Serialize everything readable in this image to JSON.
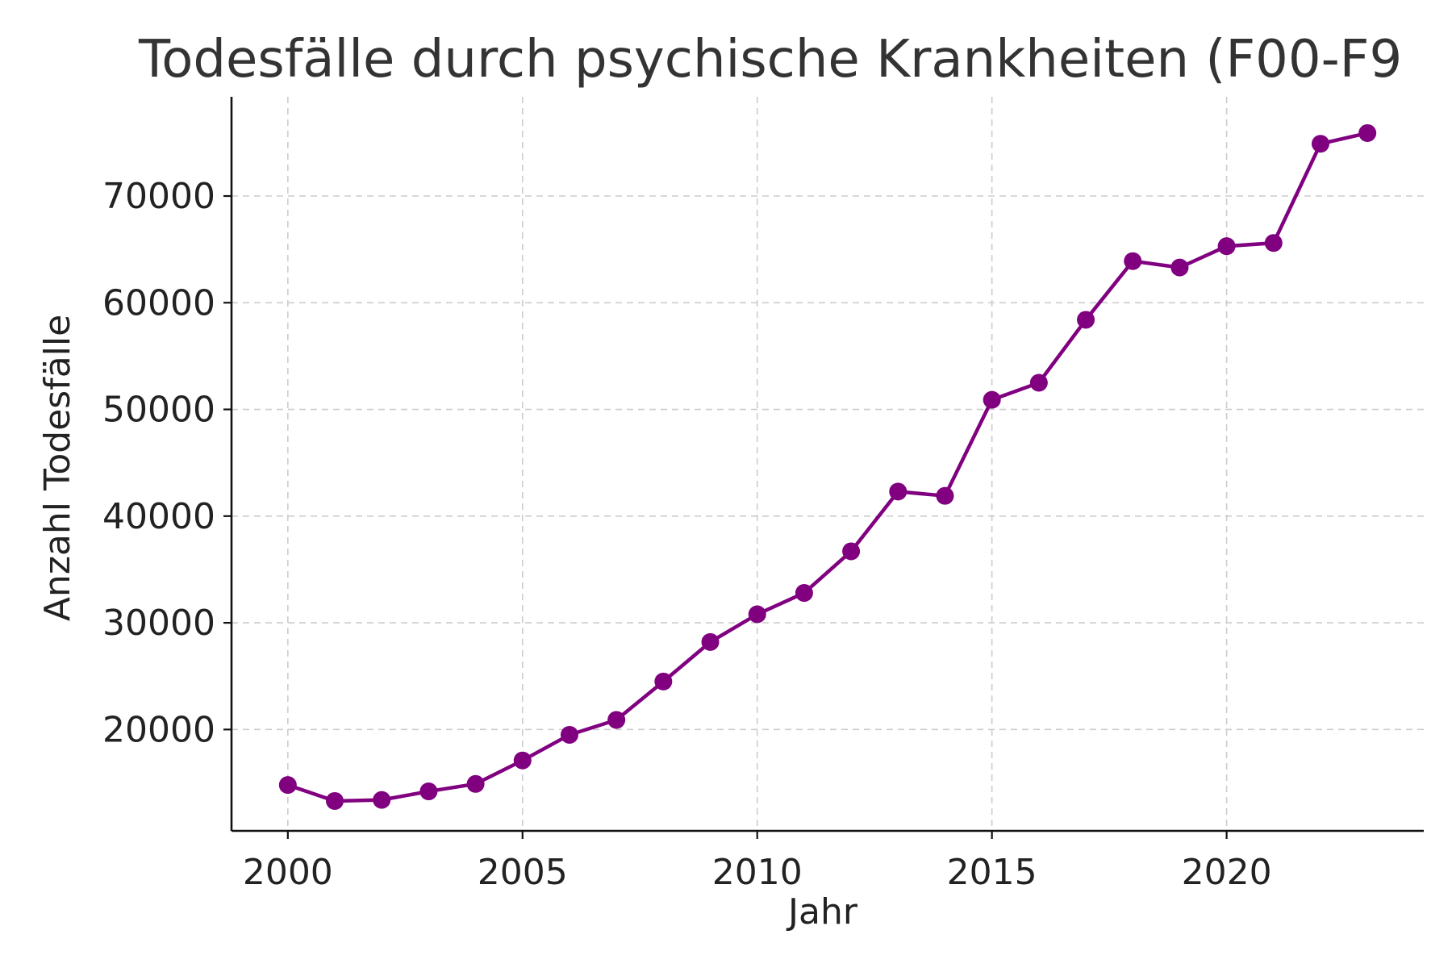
{
  "chart_data": {
    "type": "line",
    "title": "Todesfälle durch psychische Krankheiten (F00-F9",
    "xlabel": "Jahr",
    "ylabel": "Anzahl Todesfälle",
    "xlim": [
      1998.8,
      2024.2
    ],
    "ylim": [
      10500,
      79300
    ],
    "xticks": [
      2000,
      2005,
      2010,
      2015,
      2020
    ],
    "yticks": [
      20000,
      30000,
      40000,
      50000,
      60000,
      70000
    ],
    "grid": true,
    "legend": "none",
    "series": [
      {
        "color": "#800080",
        "x": [
          2000,
          2001,
          2002,
          2003,
          2004,
          2005,
          2006,
          2007,
          2008,
          2009,
          2010,
          2011,
          2012,
          2013,
          2014,
          2015,
          2016,
          2017,
          2018,
          2019,
          2020,
          2021,
          2022,
          2023
        ],
        "y": [
          14800,
          13300,
          13400,
          14200,
          14900,
          17100,
          19500,
          20900,
          24500,
          28200,
          30800,
          32800,
          36700,
          42300,
          41900,
          50900,
          52500,
          58400,
          63900,
          63300,
          65300,
          65600,
          74900,
          75900
        ]
      }
    ]
  }
}
